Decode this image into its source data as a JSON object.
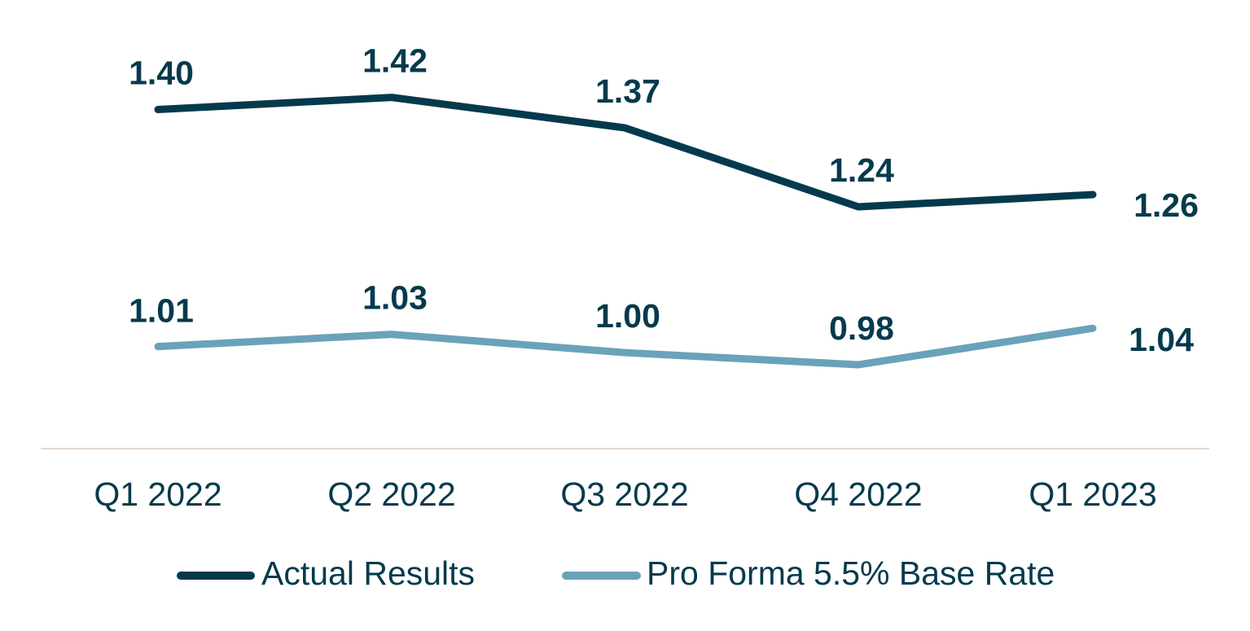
{
  "chart_data": {
    "type": "line",
    "title": "",
    "xlabel": "",
    "ylabel": "",
    "categories": [
      "Q1 2022",
      "Q2 2022",
      "Q3 2022",
      "Q4 2022",
      "Q1 2023"
    ],
    "ylim": [
      0.85,
      1.52
    ],
    "grid": false,
    "legend_position": "bottom-center",
    "series": [
      {
        "name": "Actual Results",
        "values": [
          1.4,
          1.42,
          1.37,
          1.24,
          1.26
        ],
        "labels": [
          "1.40",
          "1.42",
          "1.37",
          "1.24",
          "1.26"
        ],
        "color": "#053a4c"
      },
      {
        "name": "Pro Forma 5.5% Base Rate",
        "values": [
          1.01,
          1.03,
          1.0,
          0.98,
          1.04
        ],
        "labels": [
          "1.01",
          "1.03",
          "1.00",
          "0.98",
          "1.04"
        ],
        "color": "#6aa2ba"
      }
    ],
    "axis_color": "#e6d8cf",
    "tick_color": "#053a4c"
  }
}
